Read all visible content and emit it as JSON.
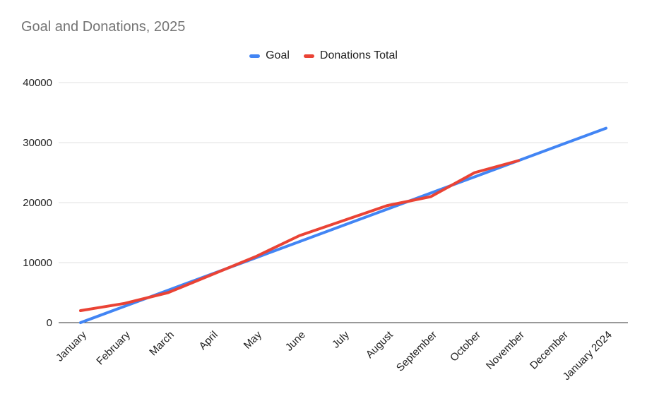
{
  "title": {
    "text": "Goal and Donations, 2025",
    "color": "#757575"
  },
  "legend": {
    "items": [
      {
        "label": "Goal",
        "color": "#4285F4"
      },
      {
        "label": "Donations Total",
        "color": "#EA4335"
      }
    ]
  },
  "chart_data": {
    "type": "line",
    "title": "Goal and Donations, 2025",
    "categories": [
      "January",
      "February",
      "March",
      "April",
      "May",
      "June",
      "July",
      "August",
      "September",
      "October",
      "November",
      "December",
      "January 2024"
    ],
    "series": [
      {
        "name": "Goal",
        "color": "#4285F4",
        "values": [
          0,
          2700,
          5400,
          8100,
          10800,
          13500,
          16200,
          18900,
          21600,
          24300,
          27000,
          29700,
          32400
        ]
      },
      {
        "name": "Donations Total",
        "color": "#EA4335",
        "values": [
          2000,
          3200,
          5000,
          8000,
          11000,
          14500,
          17000,
          19500,
          21000,
          25000,
          27000,
          null,
          null
        ]
      }
    ],
    "ylim": [
      0,
      40000
    ],
    "yticks": [
      0,
      10000,
      20000,
      30000,
      40000
    ],
    "grid": true,
    "legend_position": "top",
    "x_label_rotation": -45,
    "line_width": 4,
    "grid_color": "#e0e0e0",
    "axis_color": "#333333",
    "tick_label_color": "#212121"
  }
}
